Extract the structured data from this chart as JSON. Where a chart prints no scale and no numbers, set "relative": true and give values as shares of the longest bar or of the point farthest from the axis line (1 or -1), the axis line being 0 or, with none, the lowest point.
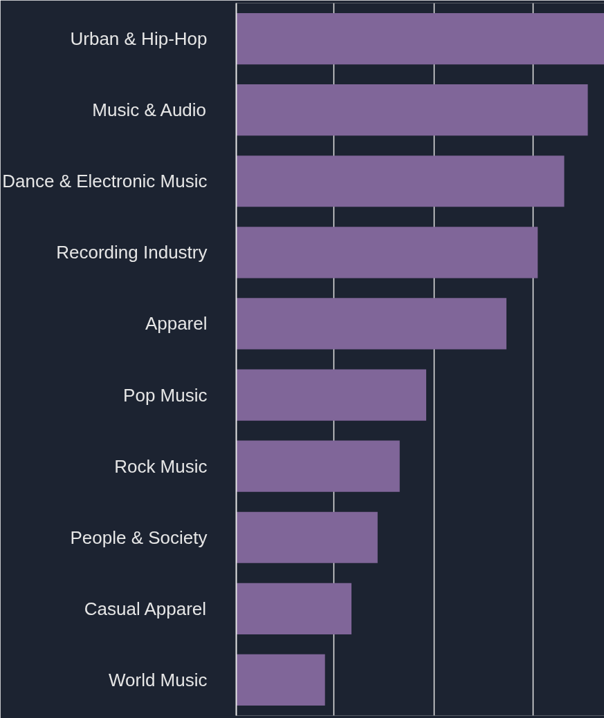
{
  "chart_data": {
    "type": "bar",
    "orientation": "horizontal",
    "relative": true,
    "grid": "x",
    "categories": [
      "Urban & Hip-Hop",
      "Music & Audio",
      "Dance & Electronic Music",
      "Recording Industry",
      "Apparel",
      "Pop Music",
      "Rock Music",
      "People & Society",
      "Casual Apparel",
      "World Music"
    ],
    "values": [
      1,
      0.955,
      0.891,
      0.819,
      0.734,
      0.516,
      0.444,
      0.384,
      0.313,
      0.241
    ],
    "color": "#806699"
  }
}
